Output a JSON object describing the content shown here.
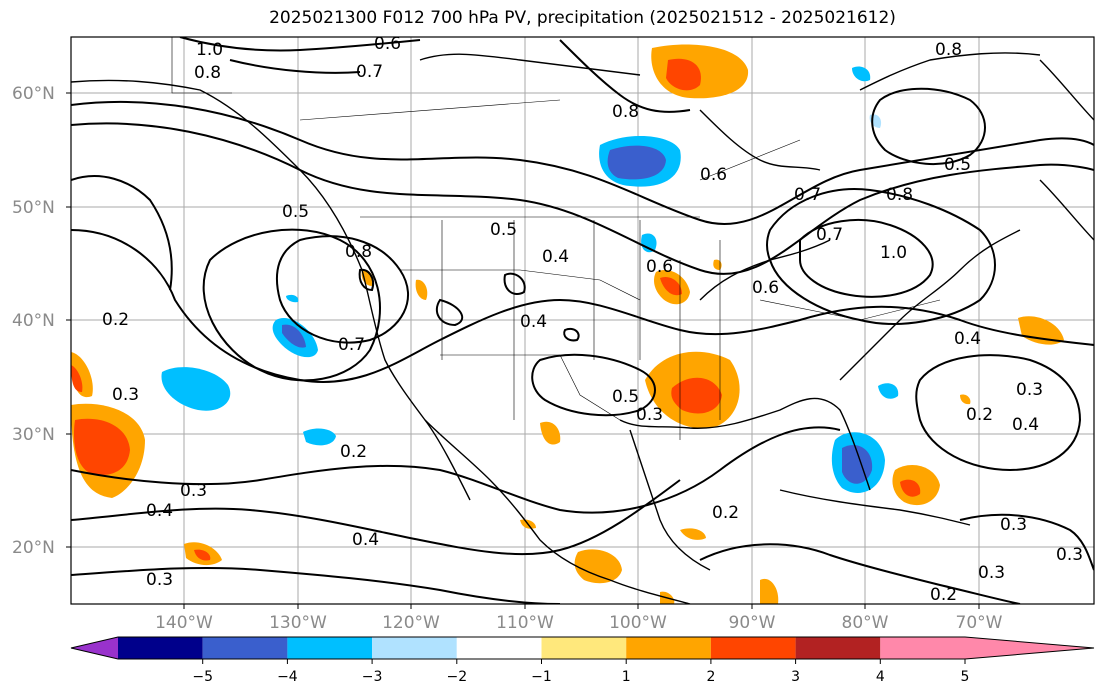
{
  "title": "2025021300 F012 700 hPa PV, precipitation (2025021512 - 2025021612)",
  "lat_labels": [
    "60°N",
    "50°N",
    "40°N",
    "30°N",
    "20°N"
  ],
  "lon_labels": [
    "140°W",
    "130°W",
    "120°W",
    "110°W",
    "100°W",
    "90°W",
    "80°W",
    "70°W"
  ],
  "contour_labels": [
    "1.0",
    "0.8",
    "0.6",
    "0.7",
    "0.8",
    "0.5",
    "0.5",
    "0.8",
    "0.4",
    "0.4",
    "0.2",
    "0.7",
    "0.3",
    "0.2",
    "0.3",
    "0.4",
    "0.3",
    "0.4",
    "0.5",
    "0.3",
    "0.2",
    "0.6",
    "0.7",
    "0.8",
    "1.0",
    "0.5",
    "0.4",
    "0.2",
    "0.4",
    "0.3",
    "0.2",
    "0.3",
    "0.3",
    "0.6",
    "0.6",
    "0.8",
    "0.7",
    "0.3"
  ],
  "colorbar": {
    "ticks": [
      "−5",
      "−4",
      "−3",
      "−2",
      "−1",
      "1",
      "2",
      "3",
      "4",
      "5"
    ],
    "colors": [
      "#9932cc",
      "#00008b",
      "#3a5fcd",
      "#00bfff",
      "#b0e2ff",
      "#ffffff",
      "#ffe87c",
      "#ffa500",
      "#ff4500",
      "#b22222",
      "#ff88aa"
    ]
  },
  "legend_field": "precipitation"
}
